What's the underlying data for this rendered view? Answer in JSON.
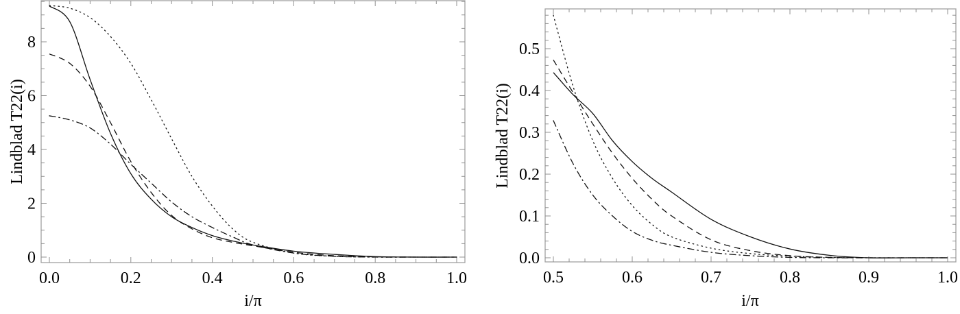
{
  "chart_data": [
    {
      "type": "line",
      "title": "",
      "xlabel": "i/π",
      "ylabel": "Lindblad T22(i)",
      "xlim": [
        0.0,
        1.0
      ],
      "ylim": [
        0,
        9.52
      ],
      "xticks": [
        "0.0",
        "0.2",
        "0.4",
        "0.6",
        "0.8",
        "1.0"
      ],
      "xtick_values": [
        0,
        0.2,
        0.4,
        0.6,
        0.8,
        1.0
      ],
      "yticks": [
        "0",
        "2",
        "4",
        "6",
        "8"
      ],
      "ytick_values": [
        0,
        2,
        4,
        6,
        8
      ],
      "xminor": 0.05,
      "yminor": 0.5,
      "grid": false,
      "x": [
        0,
        0.05,
        0.1,
        0.15,
        0.2,
        0.25,
        0.3,
        0.35,
        0.4,
        0.45,
        0.5,
        0.6,
        0.7,
        0.8,
        0.9,
        1.0
      ],
      "series": [
        {
          "style": "solid",
          "values": [
            9.33,
            8.75,
            6.6,
            4.6,
            3.1,
            2.15,
            1.5,
            1.1,
            0.8,
            0.6,
            0.45,
            0.22,
            0.1,
            0.02,
            0.0,
            0.0
          ]
        },
        {
          "style": "dashed",
          "values": [
            7.55,
            7.2,
            6.35,
            5.0,
            3.55,
            2.4,
            1.55,
            1.05,
            0.72,
            0.55,
            0.42,
            0.18,
            0.05,
            0.01,
            0.0,
            0.0
          ]
        },
        {
          "style": "dotted",
          "values": [
            9.35,
            9.25,
            8.9,
            8.2,
            7.2,
            5.85,
            4.4,
            3.0,
            1.9,
            1.05,
            0.55,
            0.15,
            0.03,
            0.0,
            0.0,
            0.0
          ]
        },
        {
          "style": "dashdot",
          "values": [
            5.25,
            5.1,
            4.8,
            4.2,
            3.45,
            2.75,
            2.05,
            1.5,
            1.1,
            0.75,
            0.45,
            0.15,
            0.03,
            0.0,
            0.0,
            0.0
          ]
        }
      ]
    },
    {
      "type": "line",
      "title": "",
      "xlabel": "i/π",
      "ylabel": "Lindblad T22(i)",
      "xlim": [
        0.5,
        1.0
      ],
      "ylim": [
        0,
        0.595
      ],
      "xticks": [
        "0.5",
        "0.6",
        "0.7",
        "0.8",
        "0.9",
        "1.0"
      ],
      "xtick_values": [
        0.5,
        0.6,
        0.7,
        0.8,
        0.9,
        1.0
      ],
      "yticks": [
        "0.0",
        "0.1",
        "0.2",
        "0.3",
        "0.4",
        "0.5"
      ],
      "ytick_values": [
        0,
        0.1,
        0.2,
        0.3,
        0.4,
        0.5
      ],
      "xminor": 0.02,
      "yminor": 0.02,
      "grid": false,
      "x": [
        0.5,
        0.525,
        0.55,
        0.575,
        0.6,
        0.625,
        0.65,
        0.7,
        0.75,
        0.8,
        0.85,
        0.9,
        0.95,
        1.0
      ],
      "series": [
        {
          "style": "solid",
          "values": [
            0.443,
            0.39,
            0.345,
            0.28,
            0.23,
            0.19,
            0.157,
            0.092,
            0.05,
            0.021,
            0.006,
            0.0,
            0.0,
            0.0
          ]
        },
        {
          "style": "dashed",
          "values": [
            0.473,
            0.395,
            0.32,
            0.25,
            0.19,
            0.14,
            0.1,
            0.043,
            0.017,
            0.005,
            0.001,
            0.0,
            0.0,
            0.0
          ]
        },
        {
          "style": "dotted",
          "values": [
            0.58,
            0.41,
            0.28,
            0.19,
            0.125,
            0.08,
            0.05,
            0.023,
            0.01,
            0.004,
            0.001,
            0.0,
            0.0,
            0.0
          ]
        },
        {
          "style": "dashdot",
          "values": [
            0.328,
            0.225,
            0.15,
            0.1,
            0.063,
            0.042,
            0.03,
            0.013,
            0.005,
            0.001,
            0.0,
            0.0,
            0.0,
            0.0
          ]
        }
      ]
    }
  ]
}
